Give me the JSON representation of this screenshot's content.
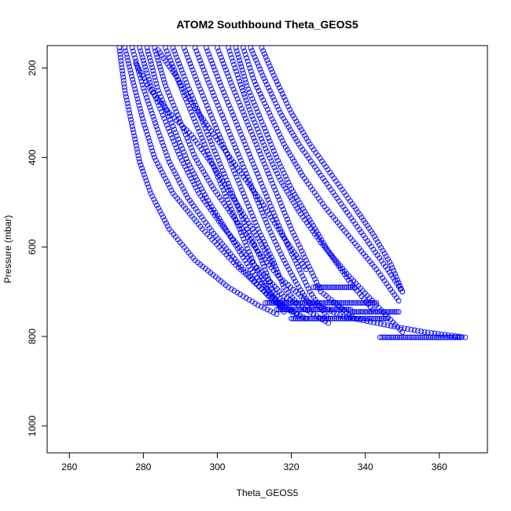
{
  "chart_data": {
    "type": "scatter",
    "title": "ATOM2 Southbound Theta_GEOS5",
    "xlabel": "Theta_GEOS5",
    "ylabel": "Pressure (mbar)",
    "xlim": [
      254,
      373
    ],
    "ylim": [
      1060,
      150
    ],
    "y_reversed": true,
    "xticks": [
      260,
      280,
      300,
      320,
      340,
      360
    ],
    "yticks": [
      200,
      400,
      600,
      800,
      1000
    ],
    "marker": "open-circle",
    "color": "#0000ff",
    "grid": false,
    "profiles": [
      {
        "theta": [
          273.5,
          275,
          277,
          279,
          282,
          287,
          294,
          303,
          311,
          316
        ],
        "pressure": [
          155,
          250,
          330,
          410,
          480,
          560,
          630,
          690,
          730,
          750
        ]
      },
      {
        "theta": [
          275,
          277.5,
          280,
          283,
          288,
          296,
          305,
          314,
          320
        ],
        "pressure": [
          155,
          240,
          320,
          400,
          480,
          560,
          640,
          710,
          745
        ]
      },
      {
        "theta": [
          277,
          280,
          283.5,
          287,
          292,
          299,
          307,
          315,
          324
        ],
        "pressure": [
          155,
          245,
          330,
          410,
          490,
          570,
          650,
          720,
          760
        ]
      },
      {
        "theta": [
          279,
          282,
          286,
          290,
          295,
          302,
          310,
          318,
          330
        ],
        "pressure": [
          155,
          240,
          320,
          400,
          480,
          560,
          640,
          710,
          770
        ]
      },
      {
        "theta": [
          281,
          284,
          288,
          292,
          297,
          303,
          309,
          315,
          318
        ],
        "pressure": [
          155,
          250,
          330,
          410,
          490,
          570,
          650,
          710,
          740
        ]
      },
      {
        "theta": [
          283,
          286,
          290,
          294,
          299,
          305,
          311,
          317,
          324,
          334,
          346,
          356,
          367
        ],
        "pressure": [
          155,
          240,
          320,
          400,
          470,
          540,
          610,
          670,
          720,
          755,
          775,
          790,
          802
        ]
      },
      {
        "theta": [
          286,
          290,
          294,
          298,
          302,
          306,
          310,
          314,
          318
        ],
        "pressure": [
          155,
          240,
          320,
          400,
          480,
          560,
          640,
          700,
          745
        ]
      },
      {
        "theta": [
          288,
          292,
          296,
          300,
          304,
          308,
          312,
          315,
          322
        ],
        "pressure": [
          155,
          240,
          320,
          400,
          480,
          560,
          630,
          700,
          755
        ]
      },
      {
        "theta": [
          291,
          295,
          299,
          303,
          307,
          311,
          315,
          318,
          322
        ],
        "pressure": [
          155,
          240,
          320,
          400,
          480,
          560,
          630,
          690,
          730
        ]
      },
      {
        "theta": [
          294,
          298,
          302,
          306,
          310,
          314,
          318,
          322,
          326
        ],
        "pressure": [
          155,
          240,
          320,
          400,
          480,
          560,
          630,
          690,
          740
        ]
      },
      {
        "theta": [
          297,
          301,
          305,
          309,
          313,
          317,
          321,
          325,
          330
        ],
        "pressure": [
          155,
          240,
          320,
          400,
          480,
          560,
          630,
          700,
          760
        ]
      },
      {
        "theta": [
          300,
          304,
          308,
          312,
          316,
          320,
          324,
          328,
          337
        ],
        "pressure": [
          155,
          240,
          320,
          400,
          480,
          560,
          630,
          700,
          760
        ]
      },
      {
        "theta": [
          303,
          306,
          309,
          313,
          317,
          322,
          328,
          335,
          343,
          350
        ],
        "pressure": [
          155,
          230,
          300,
          380,
          450,
          520,
          590,
          660,
          730,
          790
        ]
      },
      {
        "theta": [
          305,
          308,
          312,
          316,
          320,
          325,
          330,
          336,
          342
        ],
        "pressure": [
          155,
          240,
          320,
          400,
          470,
          540,
          610,
          680,
          740
        ]
      },
      {
        "theta": [
          307,
          310,
          314,
          318,
          323,
          329,
          336,
          343,
          349
        ],
        "pressure": [
          155,
          230,
          300,
          370,
          440,
          510,
          580,
          650,
          720
        ]
      },
      {
        "theta": [
          309,
          313,
          317,
          322,
          328,
          334,
          340,
          346,
          350
        ],
        "pressure": [
          155,
          230,
          300,
          370,
          440,
          510,
          580,
          650,
          700
        ]
      },
      {
        "theta": [
          312,
          316,
          320,
          325,
          331,
          337,
          342,
          347,
          350
        ],
        "pressure": [
          155,
          230,
          300,
          370,
          440,
          510,
          570,
          640,
          700
        ]
      },
      {
        "theta": [
          278,
          282,
          287,
          293,
          299,
          305,
          311,
          315
        ],
        "pressure": [
          190,
          250,
          300,
          350,
          420,
          500,
          580,
          640
        ]
      },
      {
        "theta": [
          284,
          289,
          294,
          300,
          306,
          312,
          318,
          324
        ],
        "pressure": [
          160,
          220,
          290,
          360,
          430,
          500,
          580,
          650
        ]
      }
    ],
    "segments": [
      {
        "theta": [
          313,
          343
        ],
        "pressure": [
          725,
          725
        ]
      },
      {
        "theta": [
          316,
          336
        ],
        "pressure": [
          740,
          740
        ]
      },
      {
        "theta": [
          320,
          346
        ],
        "pressure": [
          760,
          760
        ]
      },
      {
        "theta": [
          344,
          366
        ],
        "pressure": [
          802,
          802
        ]
      },
      {
        "theta": [
          326,
          337
        ],
        "pressure": [
          690,
          690
        ]
      },
      {
        "theta": [
          336,
          349
        ],
        "pressure": [
          745,
          745
        ]
      }
    ]
  }
}
